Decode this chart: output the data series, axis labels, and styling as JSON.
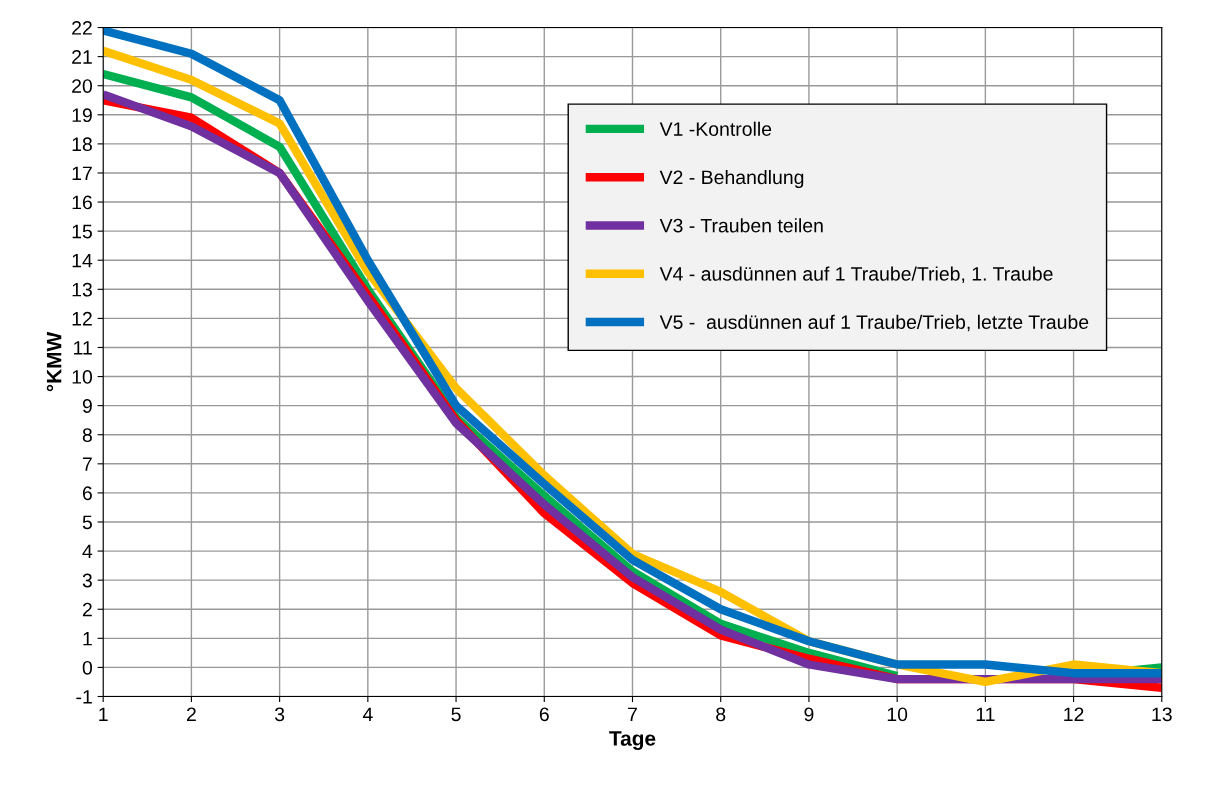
{
  "chart_data": {
    "type": "line",
    "xlabel": "Tage",
    "ylabel": "°KMW",
    "x": [
      1,
      2,
      3,
      4,
      5,
      6,
      7,
      8,
      9,
      10,
      11,
      12,
      13
    ],
    "xlim": [
      1,
      13
    ],
    "xticks": [
      1,
      2,
      3,
      4,
      5,
      6,
      7,
      8,
      9,
      10,
      11,
      12,
      13
    ],
    "ylim": [
      -1,
      22
    ],
    "yticks": [
      -1,
      0,
      1,
      2,
      3,
      4,
      5,
      6,
      7,
      8,
      9,
      10,
      11,
      12,
      13,
      14,
      15,
      16,
      17,
      18,
      19,
      20,
      21,
      22
    ],
    "grid": true,
    "legend": "top right",
    "marker": "none",
    "line_style": "solid",
    "series": [
      {
        "name": "V1 -Kontrolle",
        "color": "#00b050",
        "values": [
          20.4,
          19.6,
          17.9,
          13.0,
          8.6,
          5.9,
          3.3,
          1.5,
          0.5,
          -0.3,
          null,
          -0.3,
          0.0
        ]
      },
      {
        "name": "V2 - Behandlung",
        "color": "#ff0000",
        "values": [
          19.5,
          18.9,
          17.0,
          12.8,
          8.5,
          5.3,
          2.9,
          1.1,
          0.3,
          -0.4,
          -0.4,
          -0.4,
          -0.7
        ]
      },
      {
        "name": "V3 - Trauben teilen",
        "color": "#7030a0",
        "values": [
          19.7,
          18.6,
          17.0,
          12.6,
          8.4,
          5.6,
          3.1,
          1.3,
          0.1,
          -0.4,
          -0.4,
          -0.4,
          -0.4
        ]
      },
      {
        "name": "V4 - ausdünnen auf 1 Traube/Trieb, 1. Traube",
        "color": "#ffc000",
        "values": [
          21.2,
          20.2,
          18.7,
          13.6,
          9.6,
          6.6,
          3.9,
          2.6,
          0.9,
          0.1,
          -0.5,
          0.1,
          -0.2
        ]
      },
      {
        "name": "V5 -  ausdünnen auf 1 Traube/Trieb, letzte Traube",
        "color": "#0070c0",
        "values": [
          21.9,
          21.1,
          19.5,
          14.0,
          9.0,
          6.3,
          3.7,
          2.0,
          0.9,
          0.1,
          0.1,
          -0.2,
          -0.2
        ]
      }
    ]
  }
}
